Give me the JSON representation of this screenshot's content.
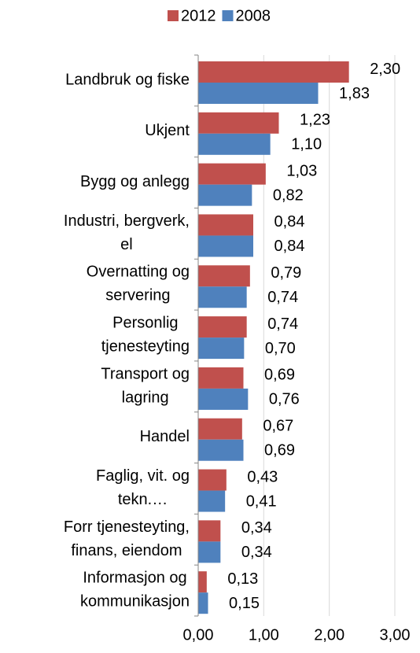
{
  "chart_data": {
    "type": "bar",
    "orientation": "horizontal",
    "categories": [
      "Landbruk og fiske",
      "Ukjent",
      "Bygg og anlegg",
      "Industri, bergverk,\nel",
      "Overnatting og\nservering",
      "Personlig\ntjenesteyting",
      "Transport og\nlagring",
      "Handel",
      "Faglig, vit. og\ntekn.…",
      "Forr tjenesteyting,\nfinans, eiendom",
      "Informasjon og\nkommunikasjon"
    ],
    "series": [
      {
        "name": "2012",
        "color": "#c0504d",
        "values": [
          2.3,
          1.23,
          1.03,
          0.84,
          0.79,
          0.74,
          0.69,
          0.67,
          0.43,
          0.34,
          0.13
        ],
        "value_labels": [
          "2,30",
          "1,23",
          "1,03",
          "0,84",
          "0,79",
          "0,74",
          "0,69",
          "0,67",
          "0,43",
          "0,34",
          "0,13"
        ]
      },
      {
        "name": "2008",
        "color": "#4f81bd",
        "values": [
          1.83,
          1.1,
          0.82,
          0.84,
          0.74,
          0.7,
          0.76,
          0.69,
          0.41,
          0.34,
          0.15
        ],
        "value_labels": [
          "1,83",
          "1,10",
          "0,82",
          "0,84",
          "0,74",
          "0,70",
          "0,76",
          "0,69",
          "0,41",
          "0,34",
          "0,15"
        ]
      }
    ],
    "xlim": [
      0,
      3
    ],
    "xticks": [
      {
        "value": 0,
        "label": "0,00"
      },
      {
        "value": 1,
        "label": "1,00"
      },
      {
        "value": 2,
        "label": "2,00"
      },
      {
        "value": 3,
        "label": "3,00"
      }
    ],
    "grid": true,
    "legend": "top"
  }
}
